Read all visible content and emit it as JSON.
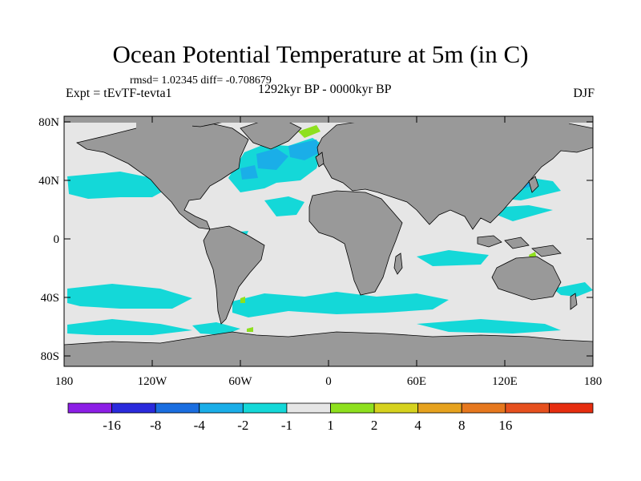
{
  "title": "Ocean Potential Temperature at 5m (in C)",
  "stats": "rmsd= 1.02345 diff= -0.708679",
  "expt": "Expt = tEvTF-tevta1",
  "period": "1292kyr BP - 0000kyr BP",
  "season": "DJF",
  "lat_labels": [
    "80N",
    "40N",
    "0",
    "40S",
    "80S"
  ],
  "lon_labels": [
    "180",
    "120W",
    "60W",
    "0",
    "60E",
    "120E",
    "180"
  ],
  "colorbar": {
    "colors": [
      "#8c1ee6",
      "#2a2adc",
      "#1a6ee0",
      "#1aaee8",
      "#14d8d8",
      "#e6e6e6",
      "#8ee01e",
      "#d6d21e",
      "#e6a21e",
      "#e6781e",
      "#e6501e",
      "#e62d0f"
    ],
    "labels": [
      "-16",
      "-8",
      "-4",
      "-2",
      "-1",
      "1",
      "2",
      "4",
      "8",
      "16"
    ]
  },
  "colors": {
    "land": "#999999",
    "ocean_neutral": "#e6e6e6",
    "cool_anomaly": "#14d8d8",
    "medium_cool": "#1aaee8",
    "warm_anomaly": "#8ee01e"
  }
}
